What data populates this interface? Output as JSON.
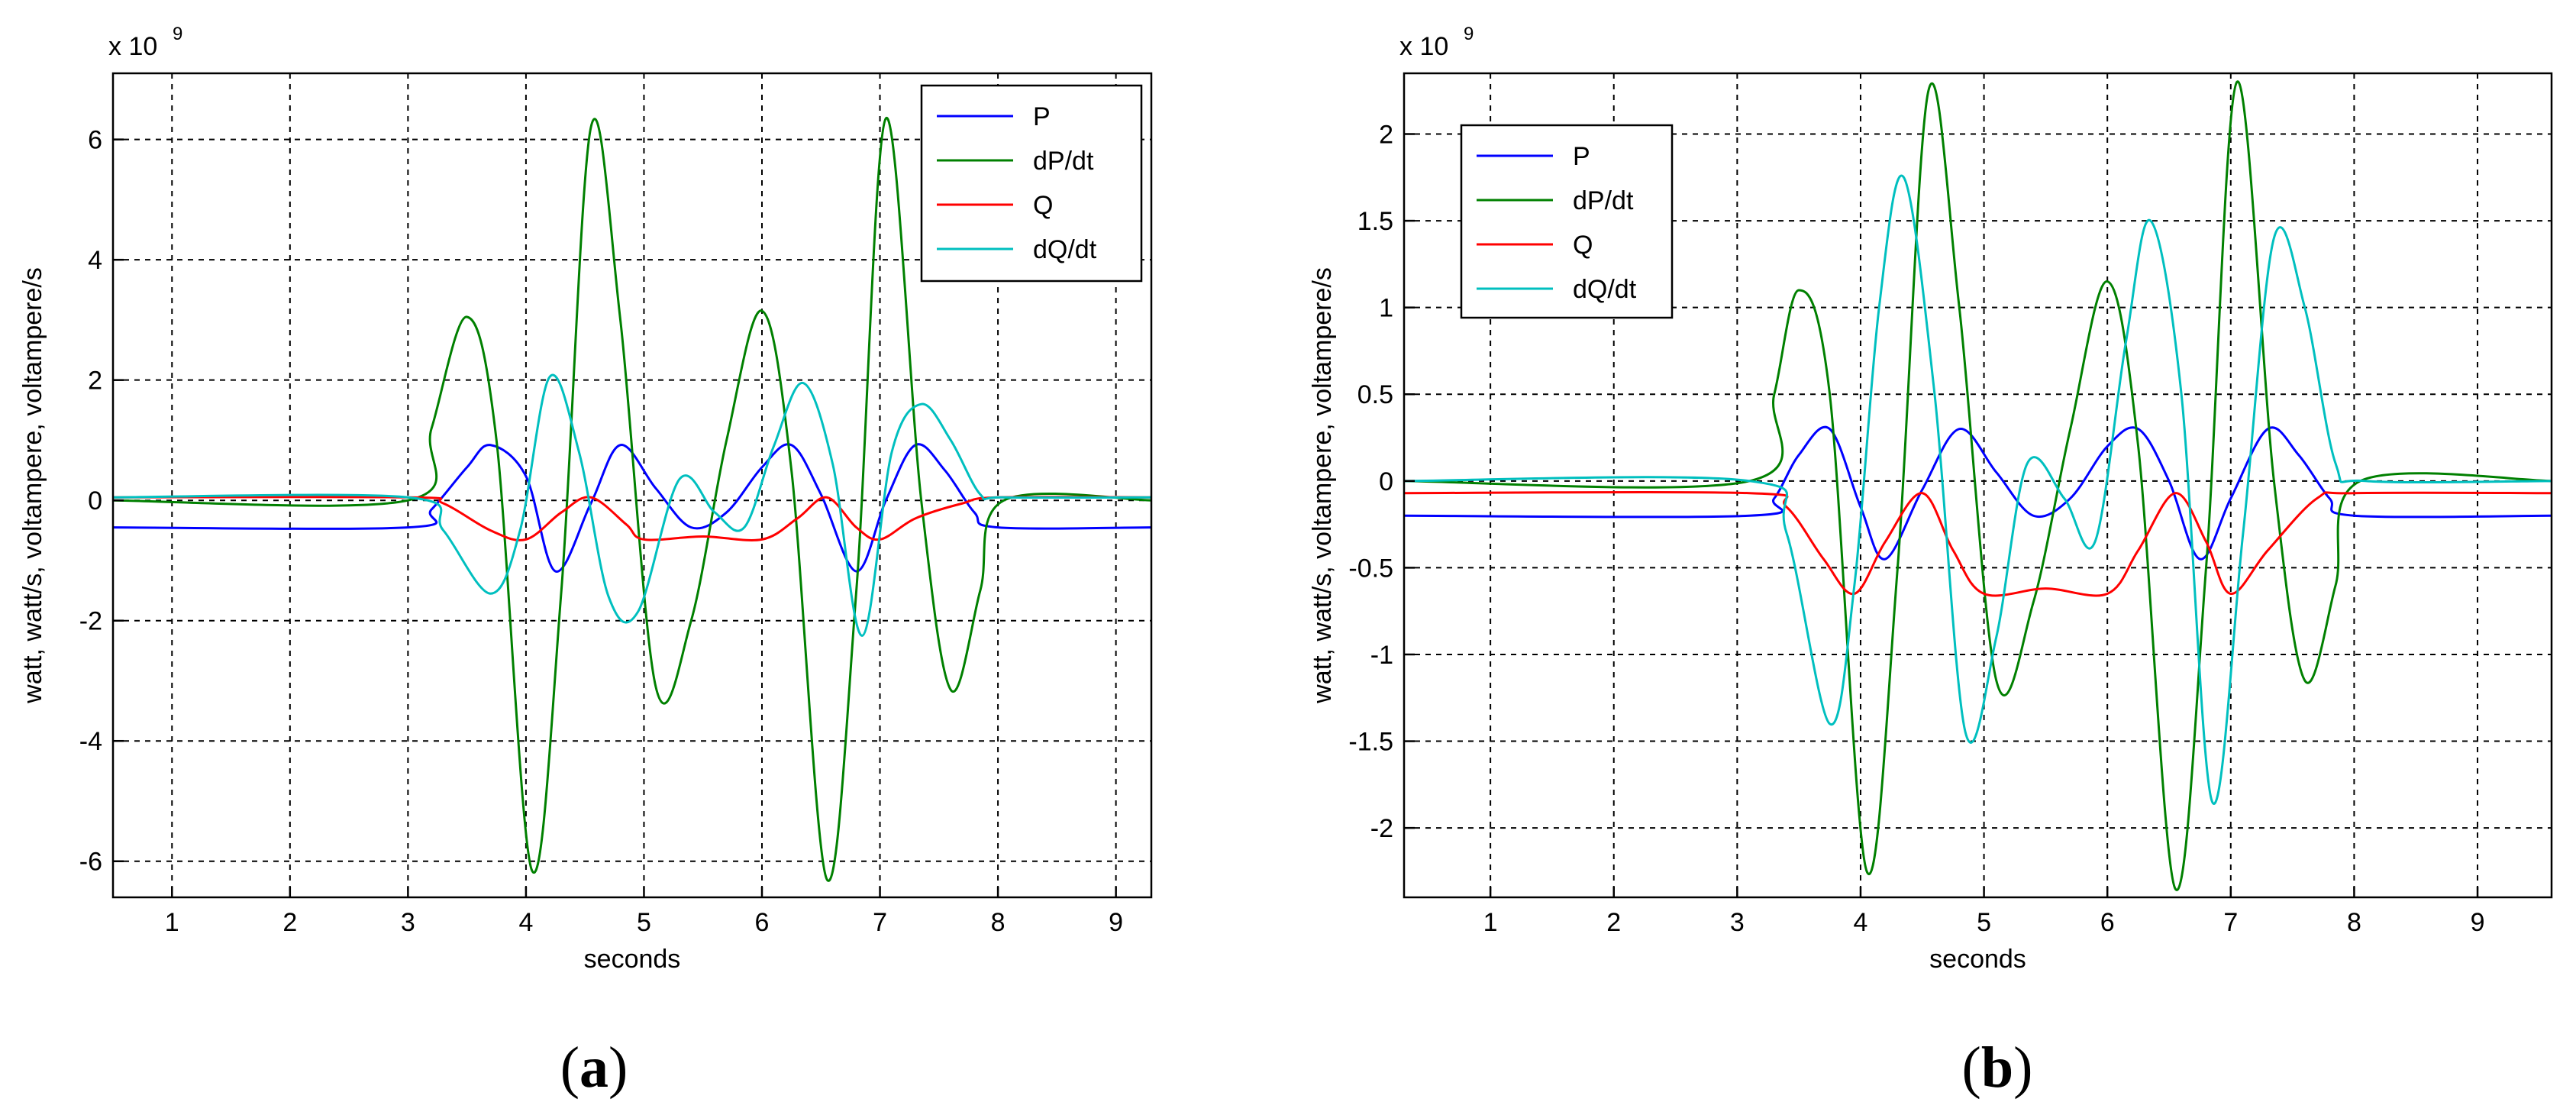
{
  "colors": {
    "P": "#0000ff",
    "dP/dt": "#008000",
    "Q": "#ff0000",
    "dQ/dt": "#00bfbf",
    "axis": "#000000",
    "grid": "#000000"
  },
  "panels": [
    {
      "caption_label": "a",
      "caption_open": "(",
      "caption_close": ")",
      "exponent_label": "x 10",
      "exponent_power": "9",
      "chart_data": {
        "type": "line",
        "title": "",
        "xlabel": "seconds",
        "ylabel": "watt, watt/s, voltampere, voltampere/s",
        "xlim": [
          0.5,
          9.3
        ],
        "ylim": [
          -6.6,
          7.1
        ],
        "y_multiplier": "x 10^9",
        "xticks": [
          1,
          2,
          3,
          4,
          5,
          6,
          7,
          8,
          9
        ],
        "yticks": [
          -6,
          -4,
          -2,
          0,
          2,
          4,
          6
        ],
        "ytick_labels": [
          "-6",
          "-4",
          "-2",
          "0",
          "2",
          "4",
          "6"
        ],
        "grid": true,
        "legend_position": "top-right",
        "series": [
          {
            "name": "P",
            "color": "#0000ff",
            "x": [
              0.5,
              3.0,
              3.2,
              3.5,
              3.7,
              4.0,
              4.25,
              4.55,
              4.8,
              5.1,
              5.4,
              5.7,
              6.0,
              6.25,
              6.5,
              6.8,
              7.05,
              7.3,
              7.55,
              7.8,
              8.0,
              9.3
            ],
            "y": [
              -0.45,
              -0.45,
              -0.15,
              0.55,
              0.92,
              0.4,
              -1.18,
              -0.05,
              0.92,
              0.2,
              -0.45,
              -0.2,
              0.55,
              0.92,
              0.1,
              -1.18,
              0.0,
              0.92,
              0.5,
              -0.2,
              -0.45,
              -0.45
            ]
          },
          {
            "name": "dP/dt",
            "color": "#008000",
            "x": [
              0.5,
              3.0,
              3.2,
              3.5,
              3.75,
              4.05,
              4.3,
              4.55,
              4.8,
              5.1,
              5.4,
              5.7,
              6.0,
              6.25,
              6.55,
              6.8,
              7.05,
              7.35,
              7.6,
              7.85,
              8.05,
              9.3
            ],
            "y": [
              0.0,
              0.0,
              1.2,
              3.05,
              1.0,
              -6.15,
              -1.5,
              6.2,
              3.0,
              -3.1,
              -2.0,
              1.0,
              3.15,
              0.5,
              -6.3,
              -1.5,
              6.35,
              0.0,
              -3.15,
              -1.5,
              0.0,
              0.0
            ]
          },
          {
            "name": "Q",
            "color": "#ff0000",
            "x": [
              0.5,
              3.0,
              3.3,
              3.7,
              4.0,
              4.3,
              4.55,
              4.85,
              5.0,
              5.5,
              6.0,
              6.3,
              6.55,
              6.8,
              7.0,
              7.3,
              7.7,
              8.0,
              9.3
            ],
            "y": [
              0.05,
              0.05,
              -0.05,
              -0.5,
              -0.65,
              -0.2,
              0.05,
              -0.4,
              -0.65,
              -0.6,
              -0.65,
              -0.3,
              0.05,
              -0.45,
              -0.65,
              -0.3,
              -0.05,
              0.05,
              0.05
            ]
          },
          {
            "name": "dQ/dt",
            "color": "#00bfbf",
            "x": [
              0.5,
              3.0,
              3.3,
              3.7,
              3.95,
              4.2,
              4.45,
              4.7,
              4.95,
              5.3,
              5.6,
              5.85,
              6.1,
              6.35,
              6.6,
              6.85,
              7.1,
              7.35,
              7.6,
              7.85,
              8.05,
              9.3
            ],
            "y": [
              0.05,
              0.05,
              -0.5,
              -1.55,
              -0.5,
              2.05,
              0.8,
              -1.6,
              -1.85,
              0.35,
              -0.2,
              -0.45,
              0.9,
              1.95,
              0.6,
              -2.25,
              0.8,
              1.6,
              1.0,
              0.1,
              0.05,
              0.05
            ]
          }
        ]
      }
    },
    {
      "caption_label": "b",
      "caption_open": "(",
      "caption_close": ")",
      "exponent_label": "x 10",
      "exponent_power": "9",
      "chart_data": {
        "type": "line",
        "title": "",
        "xlabel": "seconds",
        "ylabel": "watt, watt/s, voltampere, voltampere/s",
        "xlim": [
          0.3,
          9.6
        ],
        "ylim": [
          -2.4,
          2.35
        ],
        "y_multiplier": "x 10^9",
        "xticks": [
          1,
          2,
          3,
          4,
          5,
          6,
          7,
          8,
          9
        ],
        "yticks": [
          -2,
          -1.5,
          -1,
          -0.5,
          0,
          0.5,
          1,
          1.5,
          2
        ],
        "ytick_labels": [
          "-2",
          "-1.5",
          "-1",
          "-0.5",
          "0",
          "0.5",
          "1",
          "1.5",
          "2"
        ],
        "grid": true,
        "legend_position": "top-left",
        "series": [
          {
            "name": "P",
            "color": "#0000ff",
            "x": [
              0.3,
              3.1,
              3.3,
              3.5,
              3.75,
              4.0,
              4.2,
              4.5,
              4.8,
              5.1,
              5.4,
              5.7,
              6.0,
              6.25,
              6.5,
              6.75,
              7.0,
              7.3,
              7.55,
              7.8,
              8.0,
              9.6
            ],
            "y": [
              -0.2,
              -0.2,
              -0.1,
              0.15,
              0.3,
              -0.15,
              -0.45,
              -0.05,
              0.3,
              0.05,
              -0.2,
              -0.1,
              0.2,
              0.3,
              0.0,
              -0.45,
              -0.1,
              0.3,
              0.15,
              -0.1,
              -0.2,
              -0.2
            ]
          },
          {
            "name": "dP/dt",
            "color": "#008000",
            "x": [
              0.3,
              3.1,
              3.3,
              3.5,
              3.75,
              4.05,
              4.3,
              4.55,
              4.8,
              5.1,
              5.4,
              5.7,
              6.0,
              6.25,
              6.55,
              6.8,
              7.05,
              7.35,
              7.6,
              7.85,
              8.05,
              9.6
            ],
            "y": [
              0.0,
              0.0,
              0.5,
              1.1,
              0.5,
              -2.25,
              -0.5,
              2.25,
              1.0,
              -1.15,
              -0.7,
              0.3,
              1.15,
              0.2,
              -2.35,
              -0.5,
              2.3,
              0.0,
              -1.15,
              -0.6,
              0.0,
              0.0
            ]
          },
          {
            "name": "Q",
            "color": "#ff0000",
            "x": [
              0.3,
              3.1,
              3.4,
              3.7,
              3.95,
              4.2,
              4.5,
              4.75,
              5.0,
              5.5,
              6.0,
              6.25,
              6.55,
              6.8,
              7.0,
              7.3,
              7.7,
              8.0,
              9.6
            ],
            "y": [
              -0.07,
              -0.07,
              -0.15,
              -0.45,
              -0.65,
              -0.35,
              -0.07,
              -0.4,
              -0.65,
              -0.62,
              -0.65,
              -0.4,
              -0.07,
              -0.35,
              -0.65,
              -0.4,
              -0.1,
              -0.07,
              -0.07
            ]
          },
          {
            "name": "dQ/dt",
            "color": "#00bfbf",
            "x": [
              0.3,
              3.1,
              3.4,
              3.75,
              3.95,
              4.15,
              4.35,
              4.6,
              4.85,
              5.1,
              5.35,
              5.65,
              5.9,
              6.15,
              6.35,
              6.6,
              6.85,
              7.1,
              7.35,
              7.6,
              7.85,
              8.1,
              9.6
            ],
            "y": [
              0.0,
              0.0,
              -0.3,
              -1.4,
              -0.6,
              1.0,
              1.75,
              0.5,
              -1.45,
              -0.9,
              0.1,
              -0.1,
              -0.35,
              0.8,
              1.5,
              0.5,
              -1.85,
              -0.3,
              1.4,
              1.0,
              0.1,
              0.0,
              0.0
            ]
          }
        ]
      }
    }
  ]
}
